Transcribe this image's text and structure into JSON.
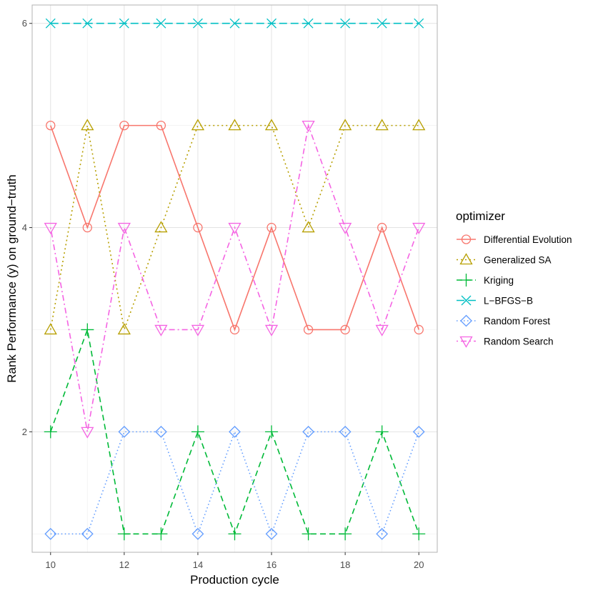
{
  "chart_data": {
    "type": "line",
    "xlabel": "Production cycle",
    "ylabel": "Rank Performance (y) on ground−truth",
    "x": [
      10,
      11,
      12,
      13,
      14,
      15,
      16,
      17,
      18,
      19,
      20
    ],
    "xlim": [
      9.5,
      20.5
    ],
    "ylim": [
      0.82,
      6.18
    ],
    "xticks": [
      "10",
      "12",
      "14",
      "16",
      "18",
      "20"
    ],
    "yticks": [
      "2",
      "4",
      "6"
    ],
    "grid": true,
    "legend": {
      "title": "optimizer",
      "position": "right"
    },
    "series": [
      {
        "name": "Differential Evolution",
        "color": "#F8766D",
        "dash": "solid",
        "shape": "circle",
        "values": [
          5,
          4,
          5,
          5,
          4,
          3,
          4,
          3,
          3,
          4,
          3
        ]
      },
      {
        "name": "Generalized SA",
        "color": "#B79F00",
        "dash": "dotted",
        "shape": "triangle",
        "values": [
          3,
          5,
          3,
          4,
          5,
          5,
          5,
          4,
          5,
          5,
          5
        ]
      },
      {
        "name": "Kriging",
        "color": "#00BA38",
        "dash": "dashed",
        "shape": "plus",
        "values": [
          2,
          3,
          1,
          1,
          2,
          1,
          2,
          1,
          1,
          2,
          1
        ]
      },
      {
        "name": "L−BFGS−B",
        "color": "#00BFC4",
        "dash": "longdash",
        "shape": "cross",
        "values": [
          6,
          6,
          6,
          6,
          6,
          6,
          6,
          6,
          6,
          6,
          6
        ]
      },
      {
        "name": "Random Forest",
        "color": "#619CFF",
        "dash": "fine-dotted",
        "shape": "diamond",
        "values": [
          1,
          1,
          2,
          2,
          1,
          2,
          1,
          2,
          2,
          1,
          2
        ]
      },
      {
        "name": "Random Search",
        "color": "#F564E3",
        "dash": "dotdash",
        "shape": "triangle-down",
        "values": [
          4,
          2,
          4,
          3,
          3,
          4,
          3,
          5,
          4,
          3,
          4
        ]
      }
    ]
  }
}
